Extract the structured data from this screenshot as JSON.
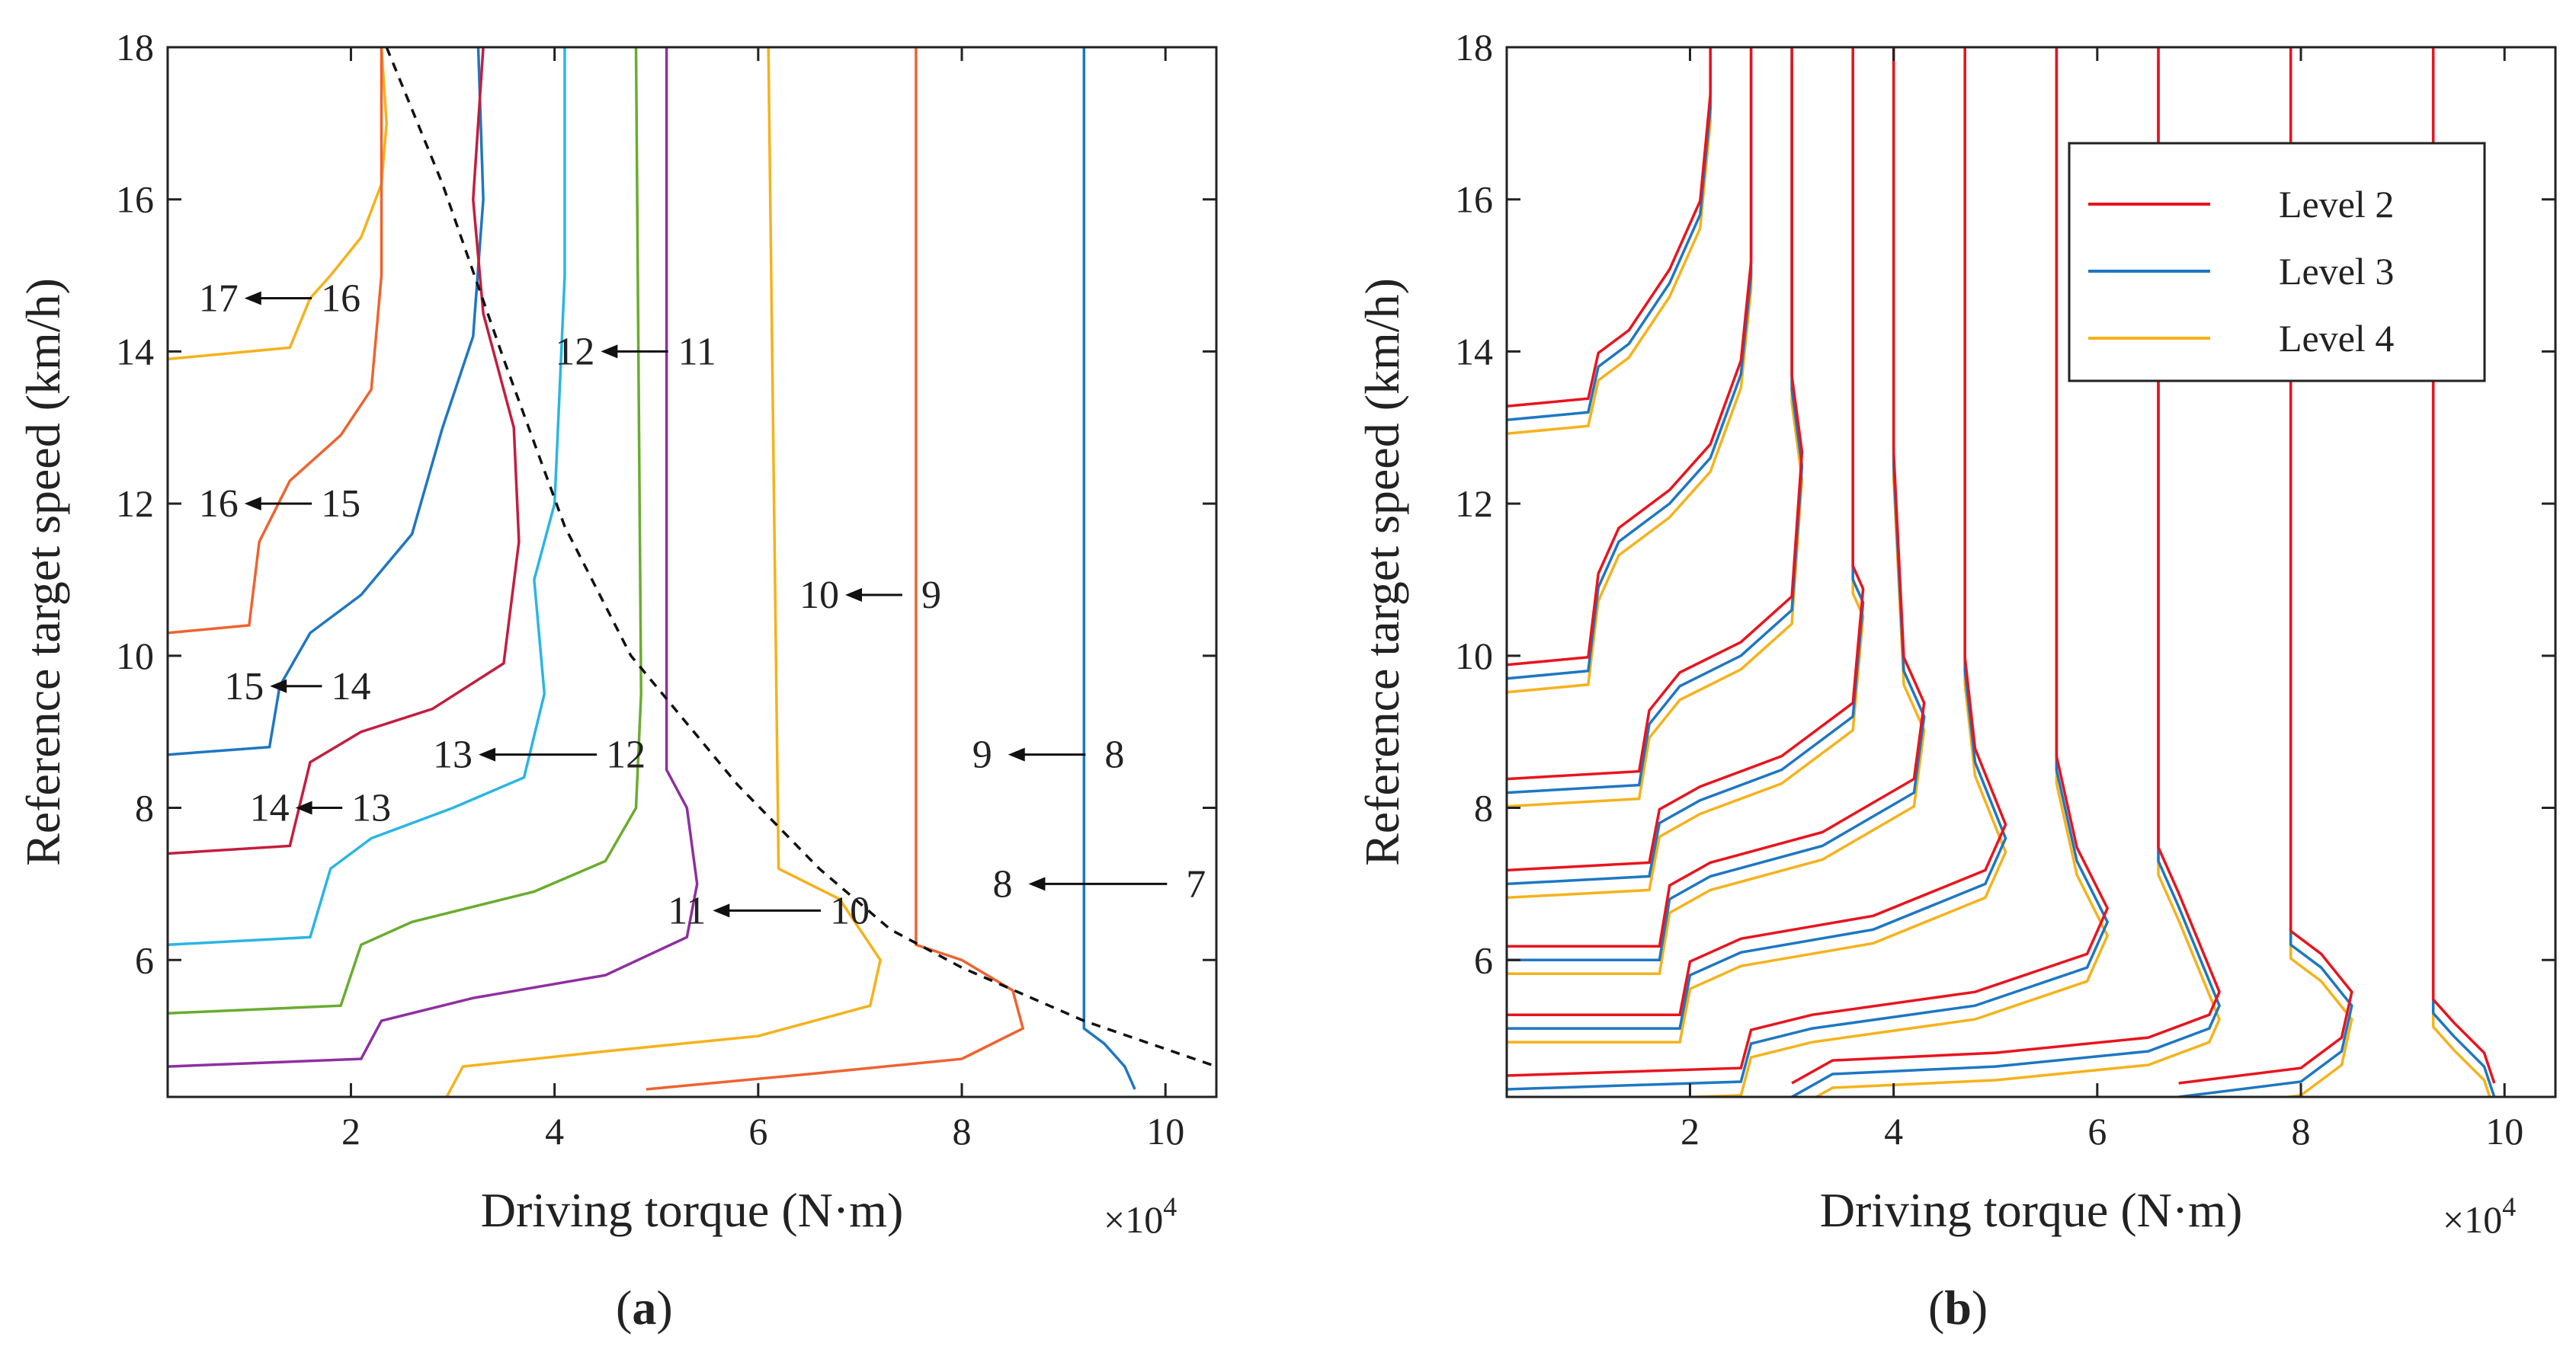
{
  "chart_data": [
    {
      "type": "line",
      "panel": "(a)",
      "panel_letter": "a",
      "xlabel": "Driving torque (N·m)",
      "x_multiplier": "×10",
      "x_multiplier_exp": "4",
      "ylabel": "Reference target speed (km/h)",
      "xlim": [
        0.2,
        10.5
      ],
      "ylim": [
        4.2,
        18
      ],
      "xticks": [
        2,
        4,
        6,
        8,
        10
      ],
      "yticks": [
        6,
        8,
        10,
        12,
        14,
        16,
        18
      ],
      "series": [
        {
          "name": "17←16",
          "color": "#f5b21b",
          "points": [
            [
              0.2,
              13.9
            ],
            [
              1.4,
              14.05
            ],
            [
              1.6,
              14.7
            ],
            [
              1.8,
              15.0
            ],
            [
              2.1,
              15.5
            ],
            [
              2.3,
              16.2
            ],
            [
              2.35,
              17.0
            ],
            [
              2.3,
              18
            ]
          ]
        },
        {
          "name": "16←15",
          "color": "#ee6330",
          "points": [
            [
              0.2,
              10.3
            ],
            [
              1.0,
              10.4
            ],
            [
              1.1,
              11.5
            ],
            [
              1.4,
              12.3
            ],
            [
              1.9,
              12.9
            ],
            [
              2.2,
              13.5
            ],
            [
              2.3,
              15.0
            ],
            [
              2.3,
              18
            ]
          ]
        },
        {
          "name": "15←14",
          "color": "#1e77c2",
          "points": [
            [
              0.2,
              8.7
            ],
            [
              1.2,
              8.8
            ],
            [
              1.3,
              9.6
            ],
            [
              1.6,
              10.3
            ],
            [
              2.1,
              10.8
            ],
            [
              2.6,
              11.6
            ],
            [
              2.9,
              13.0
            ],
            [
              3.2,
              14.2
            ],
            [
              3.3,
              16.0
            ],
            [
              3.25,
              18
            ]
          ]
        },
        {
          "name": "14←13",
          "color": "#c31e3f",
          "points": [
            [
              0.2,
              7.4
            ],
            [
              1.4,
              7.5
            ],
            [
              1.6,
              8.6
            ],
            [
              2.1,
              9.0
            ],
            [
              2.8,
              9.3
            ],
            [
              3.5,
              9.9
            ],
            [
              3.65,
              11.5
            ],
            [
              3.6,
              13.0
            ],
            [
              3.3,
              14.5
            ],
            [
              3.2,
              16.0
            ],
            [
              3.3,
              18
            ]
          ]
        },
        {
          "name": "13←12",
          "color": "#29b6e3",
          "points": [
            [
              0.2,
              6.2
            ],
            [
              1.6,
              6.3
            ],
            [
              1.8,
              7.2
            ],
            [
              2.2,
              7.6
            ],
            [
              3.0,
              8.0
            ],
            [
              3.7,
              8.4
            ],
            [
              3.9,
              9.5
            ],
            [
              3.8,
              11.0
            ],
            [
              4.0,
              12.0
            ],
            [
              4.1,
              15.0
            ],
            [
              4.1,
              18
            ]
          ]
        },
        {
          "name": "12←11",
          "color": "#6aac2f",
          "points": [
            [
              0.2,
              5.3
            ],
            [
              1.9,
              5.4
            ],
            [
              2.1,
              6.2
            ],
            [
              2.6,
              6.5
            ],
            [
              3.8,
              6.9
            ],
            [
              4.5,
              7.3
            ],
            [
              4.8,
              8.0
            ],
            [
              4.85,
              9.5
            ],
            [
              4.8,
              18
            ]
          ]
        },
        {
          "name": "11←10",
          "color": "#8e2fa0",
          "points": [
            [
              0.2,
              4.6
            ],
            [
              2.1,
              4.7
            ],
            [
              2.3,
              5.2
            ],
            [
              3.2,
              5.5
            ],
            [
              4.5,
              5.8
            ],
            [
              5.3,
              6.3
            ],
            [
              5.4,
              7.0
            ],
            [
              5.3,
              8.0
            ],
            [
              5.1,
              8.5
            ],
            [
              5.1,
              18
            ]
          ]
        },
        {
          "name": "10←9",
          "color": "#f5b21b",
          "points": [
            [
              2.9,
              4.1
            ],
            [
              3.1,
              4.6
            ],
            [
              4.5,
              4.8
            ],
            [
              6.0,
              5.0
            ],
            [
              7.1,
              5.4
            ],
            [
              7.2,
              6.0
            ],
            [
              6.8,
              6.8
            ],
            [
              6.2,
              7.2
            ],
            [
              6.1,
              18
            ]
          ]
        },
        {
          "name": "9←8",
          "color": "#ee6330",
          "points": [
            [
              4.9,
              4.3
            ],
            [
              6.5,
              4.5
            ],
            [
              8.0,
              4.7
            ],
            [
              8.6,
              5.1
            ],
            [
              8.5,
              5.6
            ],
            [
              8.0,
              6.0
            ],
            [
              7.55,
              6.2
            ],
            [
              7.55,
              18
            ]
          ]
        },
        {
          "name": "8←7",
          "color": "#1e77c2",
          "points": [
            [
              9.7,
              4.3
            ],
            [
              9.6,
              4.6
            ],
            [
              9.4,
              4.9
            ],
            [
              9.2,
              5.1
            ],
            [
              9.2,
              18
            ]
          ]
        }
      ],
      "boundary": {
        "style": "dashed",
        "points": [
          [
            2.35,
            18
          ],
          [
            2.9,
            16.2
          ],
          [
            3.5,
            13.9
          ],
          [
            4.1,
            11.7
          ],
          [
            4.75,
            10.0
          ],
          [
            5.8,
            8.3
          ],
          [
            6.6,
            7.2
          ],
          [
            7.3,
            6.4
          ],
          [
            8.0,
            5.9
          ],
          [
            9.2,
            5.2
          ],
          [
            10.5,
            4.6
          ]
        ]
      },
      "annotations": [
        {
          "to": "17",
          "from": "16"
        },
        {
          "to": "16",
          "from": "15"
        },
        {
          "to": "15",
          "from": "14"
        },
        {
          "to": "14",
          "from": "13"
        },
        {
          "to": "13",
          "from": "12"
        },
        {
          "to": "12",
          "from": "11"
        },
        {
          "to": "11",
          "from": "10"
        },
        {
          "to": "10",
          "from": "9"
        },
        {
          "to": "9",
          "from": "8"
        },
        {
          "to": "8",
          "from": "7"
        }
      ]
    },
    {
      "type": "line",
      "panel": "(b)",
      "panel_letter": "b",
      "xlabel": "Driving torque (N·m)",
      "x_multiplier": "×10",
      "x_multiplier_exp": "4",
      "ylabel": "Reference target speed (km/h)",
      "xlim": [
        0.2,
        10.5
      ],
      "ylim": [
        4.2,
        18
      ],
      "xticks": [
        2,
        4,
        6,
        8,
        10
      ],
      "yticks": [
        6,
        8,
        10,
        12,
        14,
        16,
        18
      ],
      "legend": {
        "position": "top-right",
        "entries": [
          {
            "name": "Level 2",
            "color": "#e8141e"
          },
          {
            "name": "Level 3",
            "color": "#1e77c2"
          },
          {
            "name": "Level 4",
            "color": "#f5b21b"
          }
        ]
      },
      "levels": [
        {
          "name": "Level 2",
          "color": "#e8141e",
          "offset": 0.18
        },
        {
          "name": "Level 3",
          "color": "#1e77c2",
          "offset": 0.0
        },
        {
          "name": "Level 4",
          "color": "#f5b21b",
          "offset": -0.18
        }
      ],
      "base_curves": [
        [
          [
            0.2,
            13.1
          ],
          [
            1.0,
            13.2
          ],
          [
            1.1,
            13.8
          ],
          [
            1.4,
            14.1
          ],
          [
            1.8,
            14.9
          ],
          [
            2.1,
            15.8
          ],
          [
            2.2,
            17.2
          ],
          [
            2.2,
            18
          ]
        ],
        [
          [
            0.2,
            9.7
          ],
          [
            1.0,
            9.8
          ],
          [
            1.1,
            10.9
          ],
          [
            1.3,
            11.5
          ],
          [
            1.8,
            12.0
          ],
          [
            2.2,
            12.6
          ],
          [
            2.5,
            13.7
          ],
          [
            2.6,
            15.0
          ],
          [
            2.6,
            18
          ]
        ],
        [
          [
            0.2,
            8.2
          ],
          [
            1.5,
            8.3
          ],
          [
            1.6,
            9.1
          ],
          [
            1.9,
            9.6
          ],
          [
            2.5,
            10.0
          ],
          [
            3.0,
            10.6
          ],
          [
            3.1,
            12.5
          ],
          [
            3.0,
            13.5
          ],
          [
            3.0,
            18
          ]
        ],
        [
          [
            0.2,
            7.0
          ],
          [
            1.6,
            7.1
          ],
          [
            1.7,
            7.8
          ],
          [
            2.1,
            8.1
          ],
          [
            2.9,
            8.5
          ],
          [
            3.6,
            9.2
          ],
          [
            3.7,
            10.7
          ],
          [
            3.6,
            11.0
          ],
          [
            3.6,
            18
          ]
        ],
        [
          [
            0.2,
            6.0
          ],
          [
            1.7,
            6.0
          ],
          [
            1.8,
            6.8
          ],
          [
            2.2,
            7.1
          ],
          [
            3.3,
            7.5
          ],
          [
            4.2,
            8.2
          ],
          [
            4.3,
            9.2
          ],
          [
            4.1,
            9.8
          ],
          [
            4.0,
            12.5
          ],
          [
            4.0,
            18
          ]
        ],
        [
          [
            0.2,
            5.1
          ],
          [
            1.9,
            5.1
          ],
          [
            2.0,
            5.8
          ],
          [
            2.5,
            6.1
          ],
          [
            3.8,
            6.4
          ],
          [
            4.9,
            7.0
          ],
          [
            5.1,
            7.6
          ],
          [
            4.8,
            8.6
          ],
          [
            4.7,
            9.8
          ],
          [
            4.7,
            18
          ]
        ],
        [
          [
            0.2,
            4.3
          ],
          [
            2.5,
            4.4
          ],
          [
            2.6,
            4.9
          ],
          [
            3.2,
            5.1
          ],
          [
            4.8,
            5.4
          ],
          [
            5.9,
            5.9
          ],
          [
            6.1,
            6.5
          ],
          [
            5.8,
            7.3
          ],
          [
            5.6,
            8.5
          ],
          [
            5.6,
            18
          ]
        ],
        [
          [
            3.0,
            4.2
          ],
          [
            3.4,
            4.5
          ],
          [
            5.0,
            4.6
          ],
          [
            6.5,
            4.8
          ],
          [
            7.1,
            5.1
          ],
          [
            7.2,
            5.4
          ],
          [
            6.8,
            6.7
          ],
          [
            6.6,
            7.3
          ],
          [
            6.6,
            18
          ]
        ],
        [
          [
            6.8,
            4.2
          ],
          [
            8.0,
            4.4
          ],
          [
            8.4,
            4.8
          ],
          [
            8.5,
            5.4
          ],
          [
            8.2,
            5.9
          ],
          [
            7.9,
            6.2
          ],
          [
            7.9,
            18
          ]
        ],
        [
          [
            9.9,
            4.2
          ],
          [
            9.8,
            4.6
          ],
          [
            9.5,
            5.0
          ],
          [
            9.3,
            5.3
          ],
          [
            9.3,
            18
          ]
        ]
      ]
    }
  ]
}
